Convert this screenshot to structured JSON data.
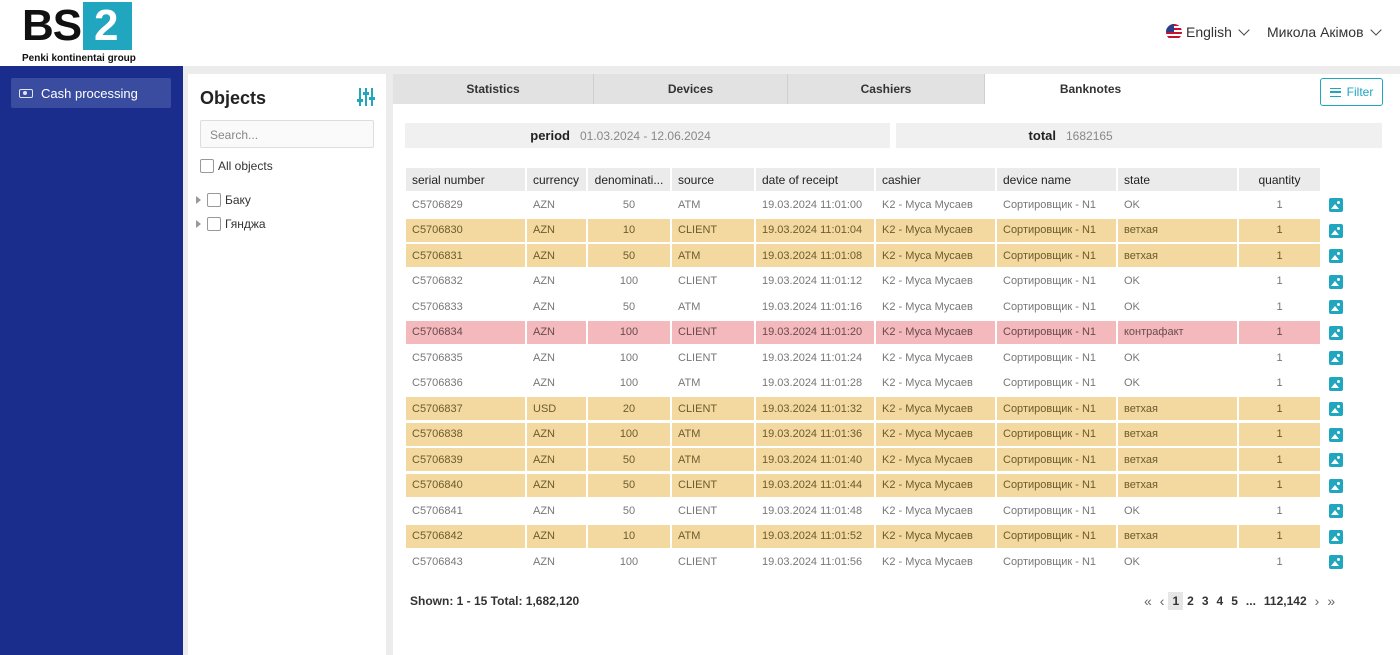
{
  "header": {
    "logo_main": "BS",
    "logo_digit": "2",
    "logo_subtitle": "Penki kontinentai group",
    "language": "English",
    "user_name": "Микола Акімов"
  },
  "sidebar": {
    "items": [
      {
        "label": "Cash processing",
        "icon": "money-icon"
      }
    ]
  },
  "objects": {
    "title": "Objects",
    "search_placeholder": "Search...",
    "all_label": "All objects",
    "tree": [
      {
        "label": "Баку"
      },
      {
        "label": "Гянджа"
      }
    ]
  },
  "tabs": [
    {
      "label": "Statistics"
    },
    {
      "label": "Devices"
    },
    {
      "label": "Cashiers"
    },
    {
      "label": "Banknotes",
      "active": true
    }
  ],
  "filter_label": "Filter",
  "summary": {
    "period_label": "period",
    "period_value": "01.03.2024 - 12.06.2024",
    "total_label": "total",
    "total_value": "1682165"
  },
  "table": {
    "columns": [
      "serial number",
      "currency",
      "denominati...",
      "source",
      "date of receipt",
      "cashier",
      "device name",
      "state",
      "quantity"
    ],
    "rows": [
      {
        "status": "ok",
        "cells": [
          "C5706829",
          "AZN",
          "50",
          "ATM",
          "19.03.2024 11:01:00",
          "K2 - Муса Мусаев",
          "Сортировщик - N1",
          "OK",
          "1"
        ]
      },
      {
        "status": "old",
        "cells": [
          "C5706830",
          "AZN",
          "10",
          "CLIENT",
          "19.03.2024 11:01:04",
          "K2 - Муса Мусаев",
          "Сортировщик - N1",
          "ветхая",
          "1"
        ]
      },
      {
        "status": "old",
        "cells": [
          "C5706831",
          "AZN",
          "50",
          "ATM",
          "19.03.2024 11:01:08",
          "K2 - Муса Мусаев",
          "Сортировщик - N1",
          "ветхая",
          "1"
        ]
      },
      {
        "status": "ok",
        "cells": [
          "C5706832",
          "AZN",
          "100",
          "CLIENT",
          "19.03.2024 11:01:12",
          "K2 - Муса Мусаев",
          "Сортировщик - N1",
          "OK",
          "1"
        ]
      },
      {
        "status": "ok",
        "cells": [
          "C5706833",
          "AZN",
          "50",
          "ATM",
          "19.03.2024 11:01:16",
          "K2 - Муса Мусаев",
          "Сортировщик - N1",
          "OK",
          "1"
        ]
      },
      {
        "status": "fake",
        "cells": [
          "C5706834",
          "AZN",
          "100",
          "CLIENT",
          "19.03.2024 11:01:20",
          "K2 - Муса Мусаев",
          "Сортировщик - N1",
          "контрафакт",
          "1"
        ]
      },
      {
        "status": "ok",
        "cells": [
          "C5706835",
          "AZN",
          "100",
          "CLIENT",
          "19.03.2024 11:01:24",
          "K2 - Муса Мусаев",
          "Сортировщик - N1",
          "OK",
          "1"
        ]
      },
      {
        "status": "ok",
        "cells": [
          "C5706836",
          "AZN",
          "100",
          "ATM",
          "19.03.2024 11:01:28",
          "K2 - Муса Мусаев",
          "Сортировщик - N1",
          "OK",
          "1"
        ]
      },
      {
        "status": "old",
        "cells": [
          "C5706837",
          "USD",
          "20",
          "CLIENT",
          "19.03.2024 11:01:32",
          "K2 - Муса Мусаев",
          "Сортировщик - N1",
          "ветхая",
          "1"
        ]
      },
      {
        "status": "old",
        "cells": [
          "C5706838",
          "AZN",
          "100",
          "ATM",
          "19.03.2024 11:01:36",
          "K2 - Муса Мусаев",
          "Сортировщик - N1",
          "ветхая",
          "1"
        ]
      },
      {
        "status": "old",
        "cells": [
          "C5706839",
          "AZN",
          "50",
          "ATM",
          "19.03.2024 11:01:40",
          "K2 - Муса Мусаев",
          "Сортировщик - N1",
          "ветхая",
          "1"
        ]
      },
      {
        "status": "old",
        "cells": [
          "C5706840",
          "AZN",
          "50",
          "CLIENT",
          "19.03.2024 11:01:44",
          "K2 - Муса Мусаев",
          "Сортировщик - N1",
          "ветхая",
          "1"
        ]
      },
      {
        "status": "ok",
        "cells": [
          "C5706841",
          "AZN",
          "50",
          "CLIENT",
          "19.03.2024 11:01:48",
          "K2 - Муса Мусаев",
          "Сортировщик - N1",
          "OK",
          "1"
        ]
      },
      {
        "status": "old",
        "cells": [
          "C5706842",
          "AZN",
          "10",
          "ATM",
          "19.03.2024 11:01:52",
          "K2 - Муса Мусаев",
          "Сортировщик - N1",
          "ветхая",
          "1"
        ]
      },
      {
        "status": "ok",
        "cells": [
          "C5706843",
          "AZN",
          "100",
          "CLIENT",
          "19.03.2024 11:01:56",
          "K2 - Муса Мусаев",
          "Сортировщик - N1",
          "OK",
          "1"
        ]
      }
    ]
  },
  "footer": {
    "shown_text": "Shown: 1 - 15 Total: 1,682,120",
    "pages": [
      "1",
      "2",
      "3",
      "4",
      "5",
      "...",
      "112,142"
    ],
    "current_page": "1"
  },
  "colors": {
    "accent": "#20a7bf",
    "sidebar": "#1b2d8c",
    "row_old": "#f3d99f",
    "row_fake": "#f3b9bd"
  }
}
